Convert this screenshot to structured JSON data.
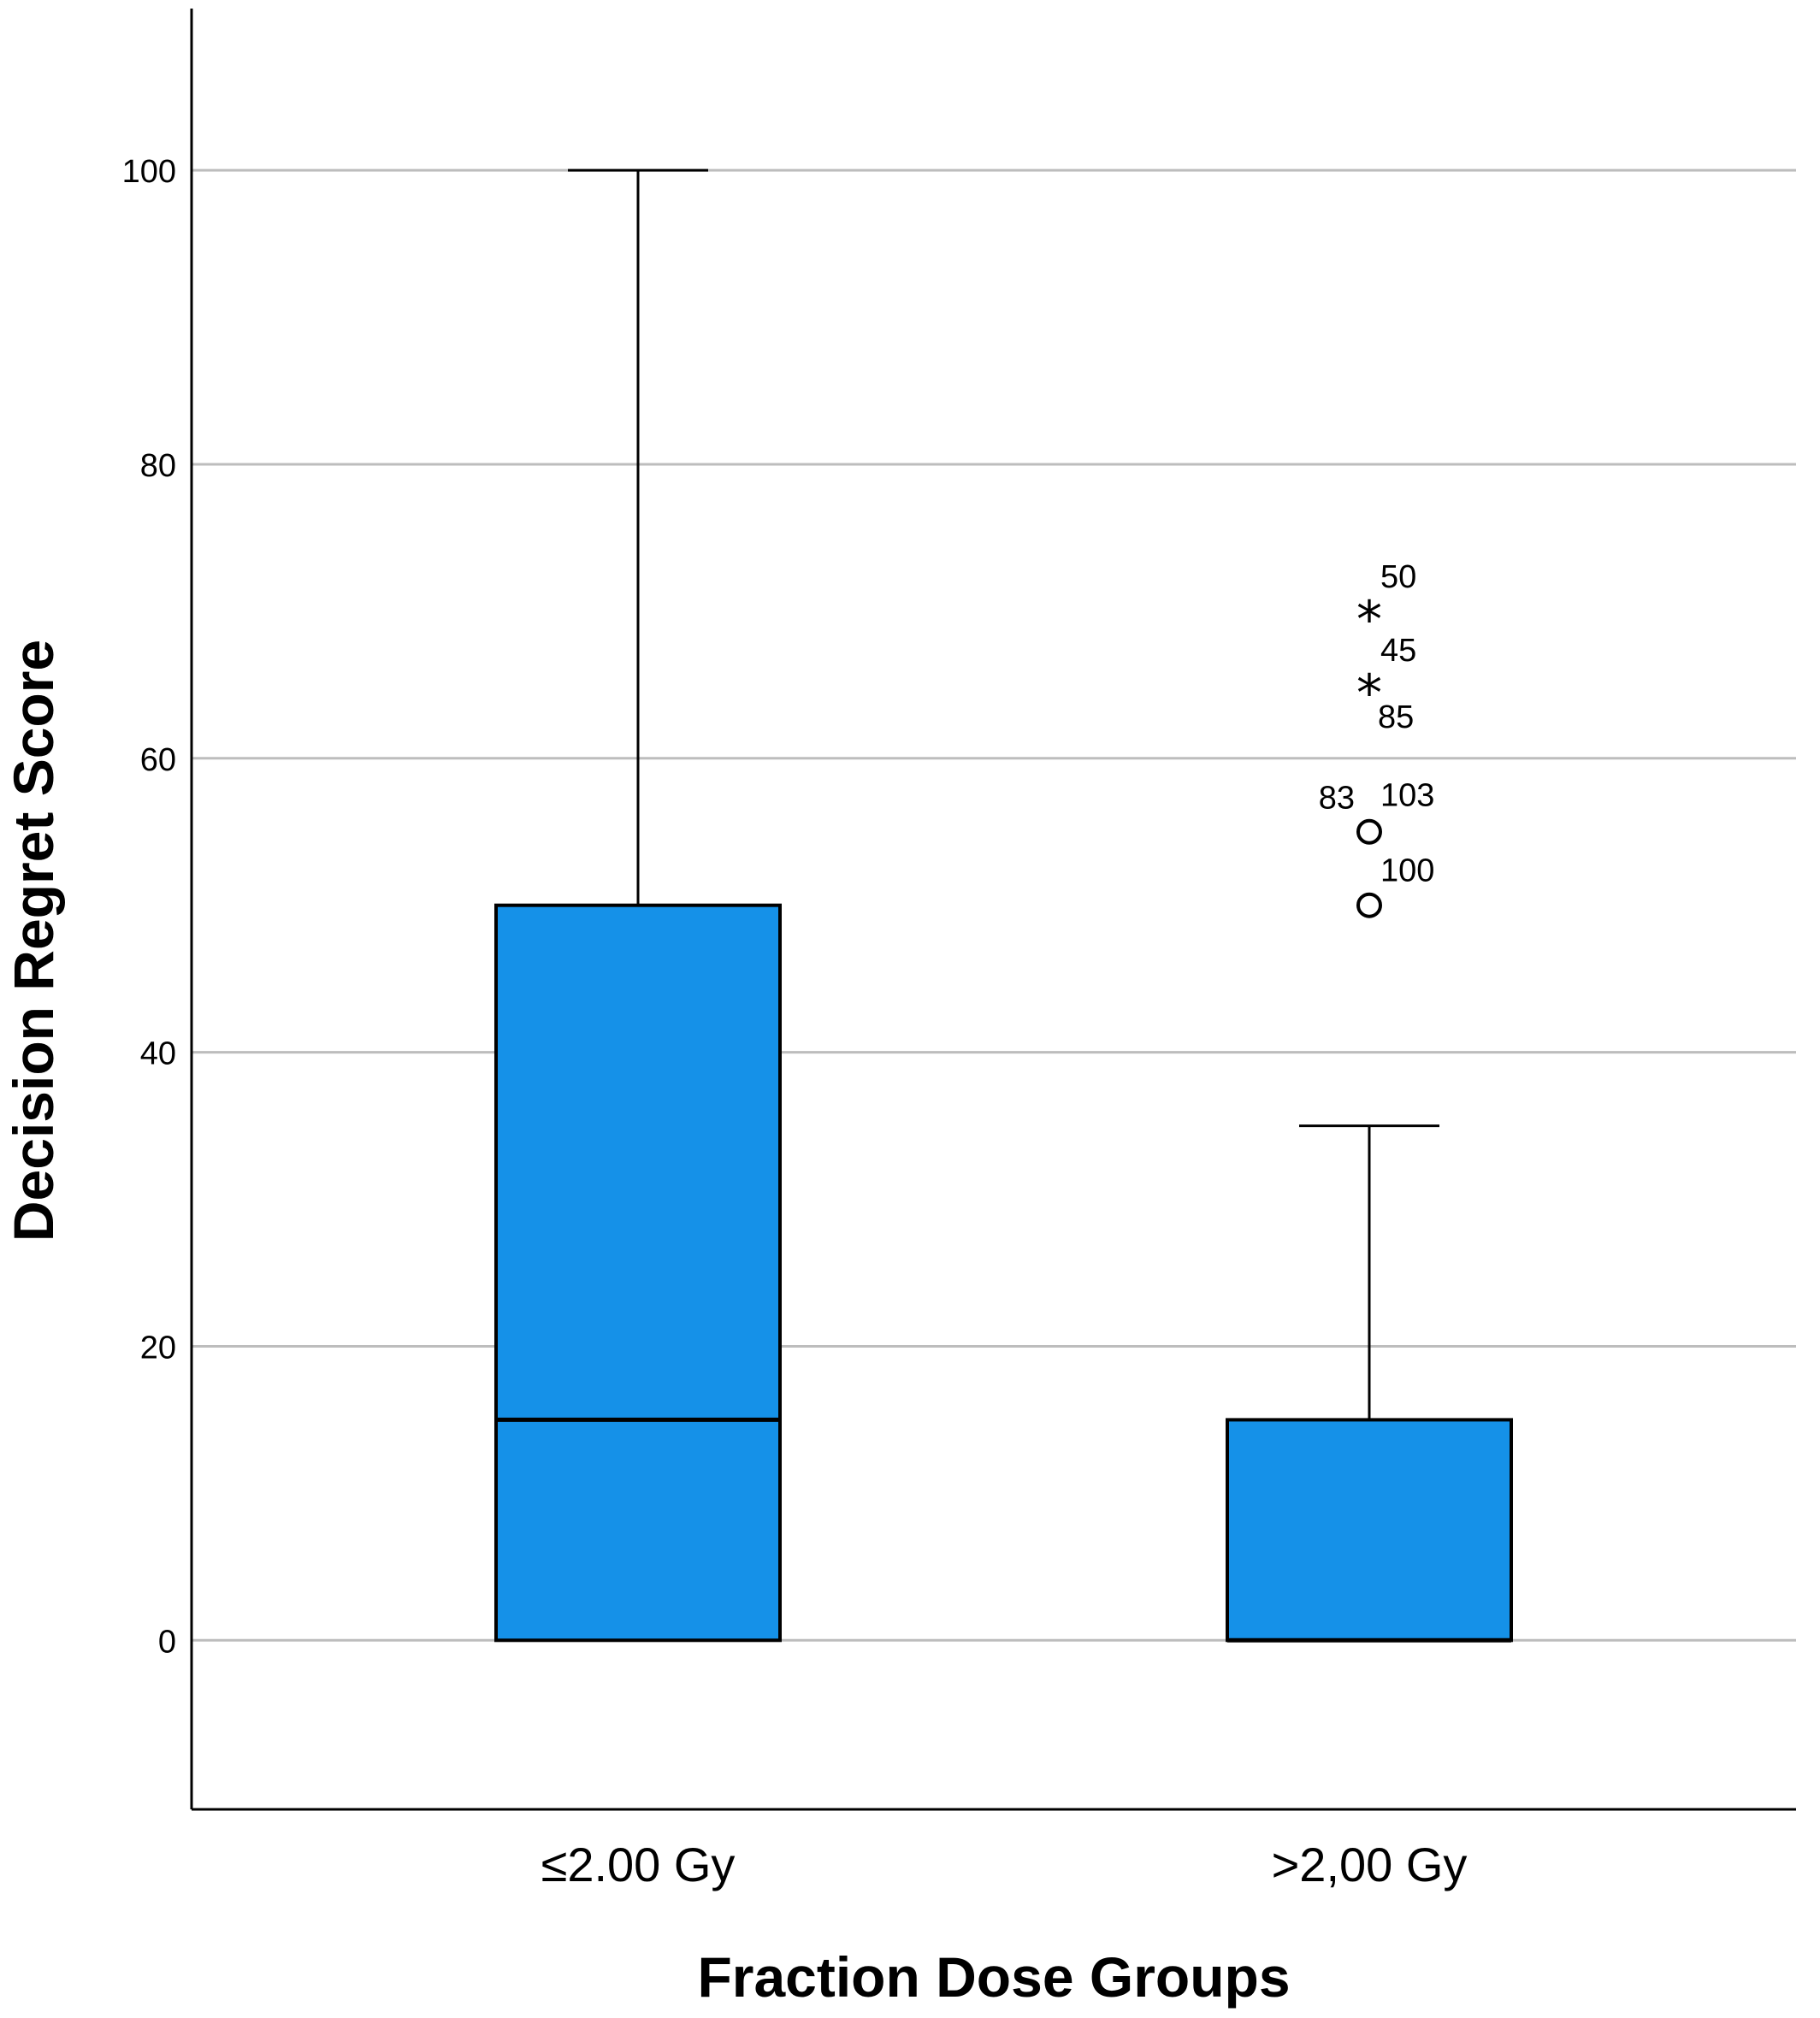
{
  "chart_data": {
    "type": "boxplot",
    "title": "",
    "xlabel": "Fraction Dose Groups",
    "ylabel": "Decision Regret Score",
    "ylim": [
      -11.5,
      111
    ],
    "yticks": [
      0,
      20,
      40,
      60,
      80,
      100
    ],
    "grid": true,
    "box_color": "#1591e8",
    "categories": [
      "≤2.00 Gy",
      ">2,00 Gy"
    ],
    "boxes": [
      {
        "category": "≤2.00 Gy",
        "min": 0,
        "q1": 0,
        "median": 15,
        "q3": 50,
        "max": 100,
        "outliers": []
      },
      {
        "category": ">2,00 Gy",
        "min": 0,
        "q1": 0,
        "median": 0,
        "q3": 15,
        "max": 35,
        "outliers": [
          {
            "value": 70,
            "marker": "star",
            "labels": [
              "50"
            ]
          },
          {
            "value": 65,
            "marker": "star",
            "labels": [
              "45",
              "85"
            ]
          },
          {
            "value": 55,
            "marker": "circle",
            "labels": [
              "83",
              "103"
            ]
          },
          {
            "value": 50,
            "marker": "circle",
            "labels": [
              "100"
            ]
          }
        ]
      }
    ]
  }
}
